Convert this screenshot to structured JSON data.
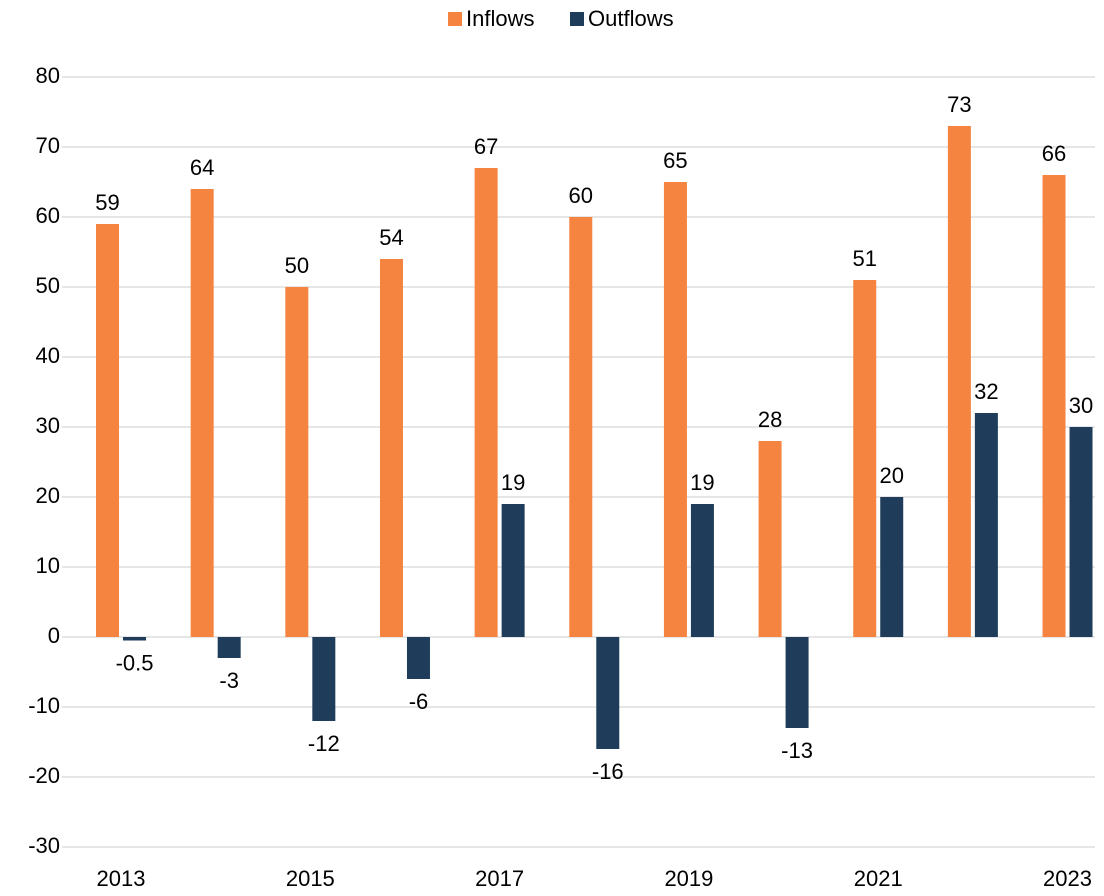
{
  "chart_data": {
    "type": "bar",
    "categories": [
      "2013",
      null,
      "2015",
      null,
      "2017",
      null,
      "2019",
      null,
      "2021",
      null,
      "2023"
    ],
    "series": [
      {
        "name": "Inflows",
        "color": "#f4843f",
        "values": [
          59,
          64,
          50,
          54,
          67,
          60,
          65,
          28,
          51,
          73,
          66
        ]
      },
      {
        "name": "Outflows",
        "color": "#1f3d5a",
        "values": [
          -0.5,
          -3,
          -12,
          -6,
          19,
          -16,
          19,
          -13,
          20,
          32,
          30
        ]
      }
    ],
    "ylim": [
      -30,
      80
    ],
    "yticks": [
      -30,
      -20,
      -10,
      0,
      10,
      20,
      30,
      40,
      50,
      60,
      70,
      80
    ],
    "grid": true,
    "legend": "top"
  }
}
